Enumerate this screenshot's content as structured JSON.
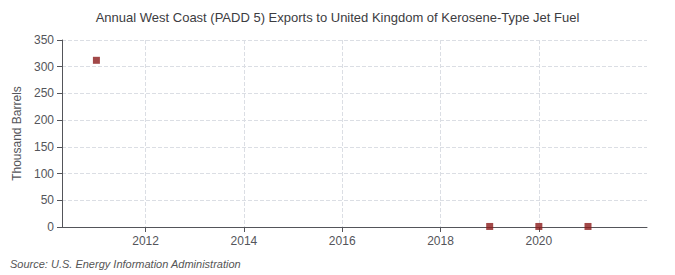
{
  "chart_data": {
    "type": "scatter",
    "title": "Annual West Coast (PADD 5) Exports to United Kingdom of Kerosene-Type Jet Fuel",
    "ylabel": "Thousand Barrels",
    "annotation": "Source: U.S. Energy Information Administration",
    "x": [
      2011,
      2019,
      2020,
      2021
    ],
    "values": [
      312,
      1,
      1,
      1
    ],
    "color": "#8b1a1a",
    "marker": "square",
    "xlim": [
      2010.3,
      2022.2
    ],
    "xticks": [
      2012,
      2014,
      2016,
      2018,
      2020
    ],
    "ylim": [
      0,
      350
    ],
    "yticks": [
      0,
      50,
      100,
      150,
      200,
      250,
      300,
      350
    ],
    "grid": true
  }
}
